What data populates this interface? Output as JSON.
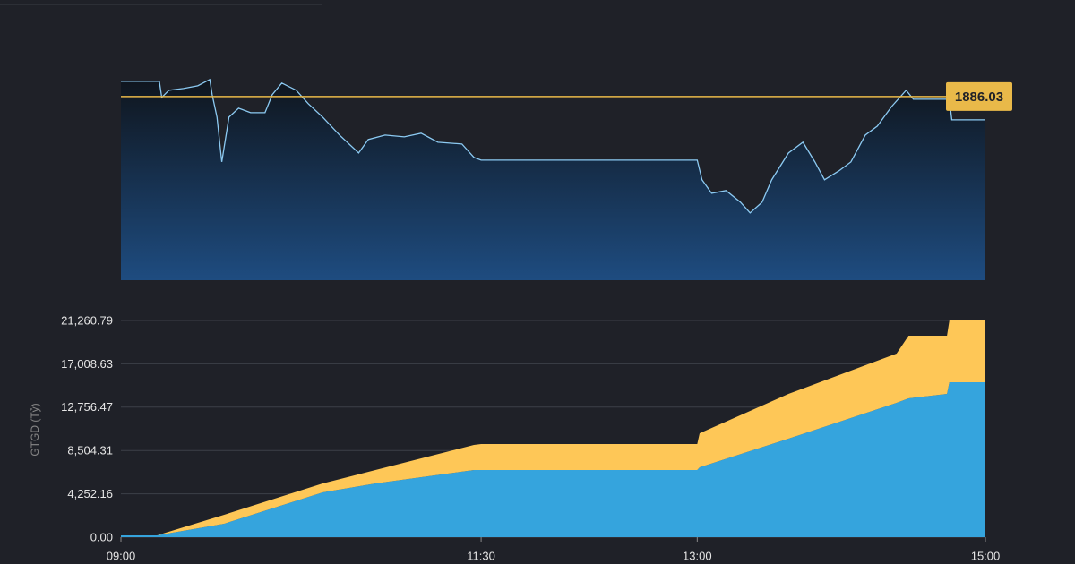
{
  "chart_data": [
    {
      "type": "line",
      "x": [
        "09:00",
        "09:16",
        "09:17",
        "09:20",
        "09:26",
        "09:32",
        "09:37",
        "09:38",
        "09:40",
        "09:42",
        "09:45",
        "09:49",
        "09:54",
        "10:00",
        "10:03",
        "10:07",
        "10:13",
        "10:18",
        "10:24",
        "10:31",
        "10:39",
        "10:43",
        "10:50",
        "10:58",
        "11:05",
        "11:12",
        "11:22",
        "11:27",
        "11:30",
        "13:00",
        "13:02",
        "13:06",
        "13:12",
        "13:18",
        "13:22",
        "13:27",
        "13:31",
        "13:38",
        "13:44",
        "13:49",
        "13:53",
        "13:59",
        "14:04",
        "14:10",
        "14:15",
        "14:21",
        "14:27",
        "14:30",
        "14:45",
        "14:46",
        "15:00"
      ],
      "values": [
        1889.43,
        1889.43,
        1885.83,
        1887.43,
        1887.83,
        1888.43,
        1889.83,
        1886.43,
        1881.43,
        1871.43,
        1881.43,
        1883.43,
        1882.43,
        1882.43,
        1886.43,
        1889.03,
        1887.43,
        1884.43,
        1881.43,
        1877.43,
        1873.43,
        1876.43,
        1877.43,
        1877.03,
        1877.83,
        1875.83,
        1875.43,
        1872.43,
        1871.83,
        1871.83,
        1867.43,
        1864.43,
        1865.03,
        1862.43,
        1860.03,
        1862.43,
        1867.43,
        1873.43,
        1875.83,
        1871.43,
        1867.43,
        1869.43,
        1871.43,
        1877.43,
        1879.43,
        1883.83,
        1887.43,
        1885.43,
        1885.43,
        1880.83,
        1880.83
      ],
      "color": "#8ccaf2",
      "xlim": [
        "09:00",
        "15:00"
      ],
      "ylim": [
        1845,
        1890
      ],
      "reference": {
        "value": 1886.03,
        "label": "1886.03",
        "color": "#e9b949"
      }
    },
    {
      "type": "area",
      "stacked": true,
      "ylabel": "GTGD (Tỷ)",
      "x": [
        "09:00",
        "09:15",
        "09:43",
        "10:24",
        "10:46",
        "11:27",
        "11:30",
        "13:00",
        "13:01",
        "13:38",
        "14:23",
        "14:28",
        "14:44",
        "14:45",
        "15:00"
      ],
      "series": [
        {
          "color": "#35a4dd",
          "values": [
            176,
            176,
            1318,
            4393,
            5271,
            6589,
            6589,
            6589,
            6853,
            9664,
            13178,
            13617,
            14057,
            15198,
            15198
          ]
        },
        {
          "color": "#fec757",
          "values": [
            0,
            0,
            879,
            878,
            1318,
            2460,
            2548,
            2548,
            3338,
            4393,
            4832,
            6150,
            5710,
            6062,
            6062
          ]
        }
      ],
      "xlim": [
        "09:00",
        "15:00"
      ],
      "xticks": [
        "09:00",
        "11:30",
        "13:00",
        "15:00"
      ],
      "ylim": [
        0,
        21260.79
      ],
      "yticks": [
        {
          "value": 0,
          "label": "0.00"
        },
        {
          "value": 4252.16,
          "label": "4,252.16"
        },
        {
          "value": 8504.31,
          "label": "8,504.31"
        },
        {
          "value": 12756.47,
          "label": "12,756.47"
        },
        {
          "value": 17008.63,
          "label": "17,008.63"
        },
        {
          "value": 21260.79,
          "label": "21,260.79"
        }
      ],
      "grid": true
    }
  ]
}
